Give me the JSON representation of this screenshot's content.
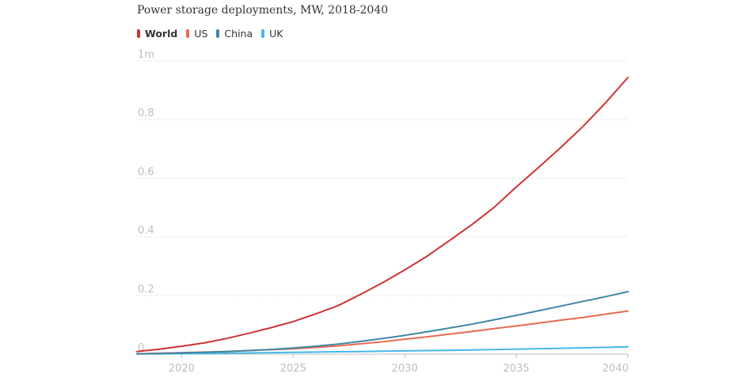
{
  "chart_data": {
    "type": "line",
    "title": "Power storage deployments, MW, 2018-2040",
    "xlabel": "",
    "ylabel": "",
    "xlim": [
      2018,
      2040
    ],
    "ylim": [
      0,
      1000000
    ],
    "x": [
      2018,
      2019,
      2020,
      2021,
      2022,
      2023,
      2024,
      2025,
      2026,
      2027,
      2028,
      2029,
      2030,
      2031,
      2032,
      2033,
      2034,
      2035,
      2036,
      2037,
      2038,
      2039,
      2040
    ],
    "x_ticks": [
      2020,
      2025,
      2030,
      2035,
      2040
    ],
    "x_tick_labels": [
      "2020",
      "2025",
      "2030",
      "2035",
      "2040"
    ],
    "y_ticks": [
      0,
      200000,
      400000,
      600000,
      800000,
      1000000
    ],
    "y_tick_labels": [
      "0",
      "0.2",
      "0.4",
      "0.6",
      "0.8",
      "1m"
    ],
    "grid": true,
    "legend_position": "top-left",
    "series": [
      {
        "name": "World",
        "color": "#cc3333",
        "bold": true,
        "values": [
          9000,
          17000,
          27000,
          38000,
          53000,
          71000,
          90000,
          111000,
          137000,
          165000,
          203000,
          243000,
          287000,
          334000,
          387000,
          441000,
          500000,
          570000,
          637000,
          705000,
          777000,
          857000,
          943000
        ]
      },
      {
        "name": "US",
        "color": "#e96a50",
        "bold": false,
        "values": [
          1000,
          3000,
          5000,
          7000,
          9000,
          12000,
          15000,
          18000,
          23000,
          28000,
          35000,
          42000,
          51000,
          59000,
          68000,
          77000,
          87000,
          96000,
          106000,
          116000,
          125000,
          136000,
          147000
        ]
      },
      {
        "name": "China",
        "color": "#3e87a8",
        "bold": false,
        "values": [
          1000,
          2000,
          4000,
          6000,
          9000,
          12000,
          16000,
          21000,
          27000,
          34000,
          43000,
          53000,
          64000,
          76000,
          89000,
          102000,
          117000,
          132000,
          148000,
          164000,
          180000,
          196000,
          213000
        ]
      },
      {
        "name": "UK",
        "color": "#46b8e8",
        "bold": false,
        "values": [
          500,
          1000,
          1500,
          2000,
          3000,
          4000,
          5000,
          6000,
          7000,
          8000,
          9000,
          10000,
          11000,
          12000,
          13000,
          14000,
          15500,
          17000,
          18500,
          20000,
          21500,
          23000,
          25000
        ]
      }
    ]
  }
}
